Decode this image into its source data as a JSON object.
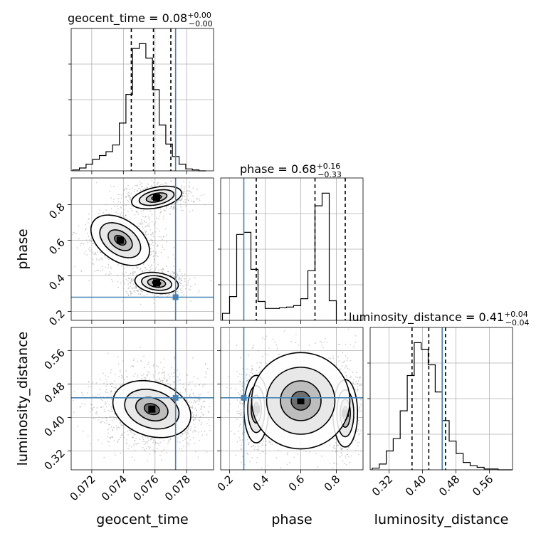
{
  "chart_data": {
    "type": "corner",
    "parameters": [
      "geocent_time",
      "phase",
      "luminosity_distance"
    ],
    "ranges": {
      "geocent_time": [
        0.0707,
        0.0797
      ],
      "phase": [
        0.15,
        0.95
      ],
      "luminosity_distance": [
        0.275,
        0.615
      ]
    },
    "ticks": {
      "geocent_time": [
        "0.072",
        "0.074",
        "0.076",
        "0.078"
      ],
      "phase": [
        "0.2",
        "0.4",
        "0.6",
        "0.8"
      ],
      "luminosity_distance": [
        "0.32",
        "0.40",
        "0.48",
        "0.56"
      ]
    },
    "tick_values": {
      "geocent_time": [
        0.072,
        0.074,
        0.076,
        0.078
      ],
      "phase": [
        0.2,
        0.4,
        0.6,
        0.8
      ],
      "luminosity_distance": [
        0.32,
        0.4,
        0.48,
        0.56
      ]
    },
    "truths": {
      "geocent_time": 0.0773,
      "phase": 0.28,
      "luminosity_distance": 0.447
    },
    "titles": [
      {
        "label": "geocent_time = 0.08",
        "upper": "+0.00",
        "lower": "−0.00"
      },
      {
        "label": "phase = 0.68",
        "upper": "+0.16",
        "lower": "−0.33"
      },
      {
        "label": "luminosity_distance = 0.41",
        "upper": "+0.04",
        "lower": "−0.04"
      }
    ],
    "quantiles": {
      "geocent_time": [
        0.0745,
        0.0759,
        0.077
      ],
      "phase": [
        0.35,
        0.68,
        0.85
      ],
      "luminosity_distance": [
        0.375,
        0.415,
        0.455
      ]
    },
    "histograms": {
      "geocent_time": {
        "edges_start": 0.0708,
        "bin_width": 0.00042,
        "counts": [
          1,
          3,
          7,
          12,
          16,
          20,
          27,
          50,
          80,
          128,
          133,
          118,
          85,
          48,
          28,
          15,
          7,
          2,
          1,
          0
        ]
      },
      "phase": {
        "edges_start": 0.16,
        "bin_width": 0.04,
        "counts": [
          10,
          34,
          123,
          126,
          73,
          27,
          17,
          17,
          18,
          19,
          21,
          31,
          71,
          164,
          182,
          28
        ]
      },
      "luminosity_distance": {
        "edges_start": 0.28,
        "bin_width": 0.0167,
        "counts": [
          2,
          7,
          23,
          38,
          72,
          115,
          155,
          147,
          128,
          95,
          60,
          35,
          20,
          9,
          5,
          3,
          1,
          1,
          0,
          0
        ]
      }
    },
    "grid": true
  }
}
